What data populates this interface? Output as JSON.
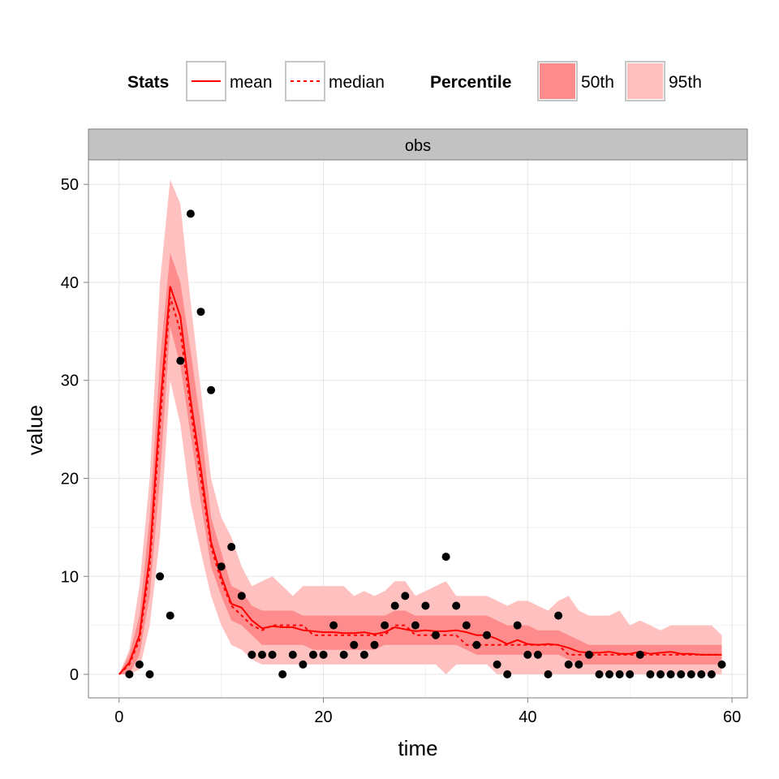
{
  "chart_data": {
    "type": "line",
    "facet_label": "obs",
    "xlabel": "time",
    "ylabel": "value",
    "xlim": [
      -3,
      61.5
    ],
    "ylim": [
      -2.4,
      52.5
    ],
    "x_ticks": [
      0,
      20,
      40,
      60
    ],
    "y_ticks": [
      0,
      10,
      20,
      30,
      40,
      50
    ],
    "grid": true,
    "legend_position": "top",
    "legend": {
      "stats_title": "Stats",
      "stats_items": [
        {
          "label": "mean",
          "linetype": "solid"
        },
        {
          "label": "median",
          "linetype": "dashed"
        }
      ],
      "percentile_title": "Percentile",
      "percentile_items": [
        {
          "label": "50th",
          "color": "#ff8c8c"
        },
        {
          "label": "95th",
          "color": "#ffc0c0"
        }
      ]
    },
    "colors": {
      "line": "#ff0000",
      "band50": "#ff8c8c",
      "band95": "#ffc0c0",
      "points": "#000000",
      "strip": "#c2c2c2"
    },
    "x": [
      0,
      1,
      2,
      3,
      4,
      5,
      6,
      7,
      8,
      9,
      10,
      11,
      12,
      13,
      14,
      15,
      16,
      17,
      18,
      19,
      20,
      21,
      22,
      23,
      24,
      25,
      26,
      27,
      28,
      29,
      30,
      31,
      32,
      33,
      34,
      35,
      36,
      37,
      38,
      39,
      40,
      41,
      42,
      43,
      44,
      45,
      46,
      47,
      48,
      49,
      50,
      51,
      52,
      53,
      54,
      55,
      56,
      57,
      58,
      59
    ],
    "series": [
      {
        "name": "mean",
        "values": [
          0,
          1.2,
          4,
          12,
          27,
          39.6,
          36.5,
          28,
          21,
          13.5,
          10,
          7.2,
          6.8,
          5.5,
          4.7,
          4.9,
          4.8,
          4.8,
          4.5,
          4.4,
          4.3,
          4.3,
          4.2,
          4.2,
          4.3,
          4.1,
          4.3,
          4.8,
          4.6,
          4.4,
          4.5,
          4.4,
          4.4,
          4.5,
          4.3,
          4,
          4,
          3.6,
          3.1,
          3.5,
          3.1,
          3,
          3.1,
          3,
          2.7,
          2.3,
          2.2,
          2.2,
          2.3,
          2.1,
          2.1,
          2.3,
          2.1,
          2.2,
          2.3,
          2.1,
          2.1,
          2,
          2,
          2
        ]
      },
      {
        "name": "median",
        "values": [
          0,
          1,
          3.5,
          11,
          25.5,
          38.5,
          35,
          27,
          20,
          13,
          9.5,
          7,
          6,
          5,
          4.5,
          5,
          5,
          5,
          5,
          4,
          4,
          4,
          4,
          4,
          4,
          4,
          4,
          5,
          5,
          4,
          4,
          4,
          4,
          4,
          3,
          3,
          3,
          3,
          3,
          3,
          3,
          3,
          3,
          3,
          2,
          2,
          2,
          2,
          2,
          2,
          2,
          2,
          2,
          2,
          2,
          2,
          2,
          2,
          2,
          2
        ]
      }
    ],
    "band50": {
      "low": [
        0,
        0,
        2,
        8,
        20,
        35.5,
        31.5,
        24.5,
        17.5,
        11,
        8,
        5.5,
        5,
        4,
        3,
        3,
        3,
        3,
        3,
        2.5,
        2.5,
        2.5,
        2.5,
        2.5,
        2.5,
        2.5,
        3,
        3,
        3,
        3,
        3,
        3,
        3,
        3,
        2.5,
        2,
        2,
        2,
        2,
        2,
        2,
        2,
        2,
        2,
        1.5,
        1,
        1,
        1,
        1,
        1,
        1,
        1,
        1,
        1,
        1,
        1,
        1,
        1,
        1,
        1
      ],
      "high": [
        0,
        2,
        6,
        16,
        32,
        43,
        40,
        33,
        25.5,
        16,
        12.5,
        9,
        8.5,
        7,
        6.5,
        6.5,
        6.5,
        6.5,
        6,
        6,
        6,
        6,
        6,
        6,
        6,
        6,
        6,
        6.5,
        6.5,
        6,
        6,
        6,
        6,
        6,
        6,
        6,
        6,
        5.5,
        5,
        5,
        5,
        4.5,
        4.5,
        4.5,
        4,
        3.5,
        3,
        3,
        3,
        3,
        3,
        3,
        3,
        3,
        3,
        3,
        3,
        3,
        3,
        3
      ]
    },
    "band95": {
      "low": [
        0,
        0,
        0.5,
        5,
        14,
        30,
        25.5,
        17.5,
        12.5,
        8,
        5,
        3,
        2.5,
        1.5,
        1,
        1,
        1,
        1,
        1,
        1,
        1,
        1,
        1,
        1,
        1,
        1,
        1,
        1,
        1,
        1,
        1,
        1,
        0,
        1,
        1,
        1,
        1,
        0,
        0,
        0,
        0,
        0,
        0,
        0,
        0,
        0,
        0,
        0,
        0,
        0,
        0,
        0,
        0,
        0,
        0,
        0,
        0,
        0,
        0,
        0
      ],
      "high": [
        0,
        2.5,
        9,
        20,
        40,
        50.5,
        48,
        38,
        29,
        20,
        16,
        14,
        11,
        9,
        9.5,
        10,
        9,
        8,
        9,
        9,
        9,
        9,
        9,
        8,
        8.5,
        8,
        8.5,
        9.5,
        9.5,
        8,
        8.5,
        9,
        9.5,
        8,
        8,
        8,
        8,
        7.5,
        7,
        7.5,
        7.5,
        7,
        6.5,
        7.5,
        8,
        6.5,
        6,
        6,
        6,
        6.5,
        5,
        5.5,
        5,
        4.5,
        5,
        5,
        5,
        5,
        5,
        4
      ]
    },
    "observations": [
      [
        1,
        0
      ],
      [
        2,
        1
      ],
      [
        3,
        0
      ],
      [
        4,
        10
      ],
      [
        5,
        6
      ],
      [
        6,
        32
      ],
      [
        7,
        47
      ],
      [
        8,
        37
      ],
      [
        9,
        29
      ],
      [
        10,
        11
      ],
      [
        11,
        13
      ],
      [
        12,
        8
      ],
      [
        13,
        2
      ],
      [
        14,
        2
      ],
      [
        15,
        2
      ],
      [
        16,
        0
      ],
      [
        17,
        2
      ],
      [
        18,
        1
      ],
      [
        19,
        2
      ],
      [
        20,
        2
      ],
      [
        21,
        5
      ],
      [
        22,
        2
      ],
      [
        23,
        3
      ],
      [
        24,
        2
      ],
      [
        25,
        3
      ],
      [
        26,
        5
      ],
      [
        27,
        7
      ],
      [
        28,
        8
      ],
      [
        29,
        5
      ],
      [
        30,
        7
      ],
      [
        31,
        4
      ],
      [
        32,
        12
      ],
      [
        33,
        7
      ],
      [
        34,
        5
      ],
      [
        35,
        3
      ],
      [
        36,
        4
      ],
      [
        37,
        1
      ],
      [
        38,
        0
      ],
      [
        39,
        5
      ],
      [
        40,
        2
      ],
      [
        41,
        2
      ],
      [
        42,
        0
      ],
      [
        43,
        6
      ],
      [
        44,
        1
      ],
      [
        45,
        1
      ],
      [
        46,
        2
      ],
      [
        47,
        0
      ],
      [
        48,
        0
      ],
      [
        49,
        0
      ],
      [
        50,
        0
      ],
      [
        51,
        2
      ],
      [
        52,
        0
      ],
      [
        53,
        0
      ],
      [
        54,
        0
      ],
      [
        55,
        0
      ],
      [
        56,
        0
      ],
      [
        57,
        0
      ],
      [
        58,
        0
      ],
      [
        59,
        1
      ]
    ]
  }
}
